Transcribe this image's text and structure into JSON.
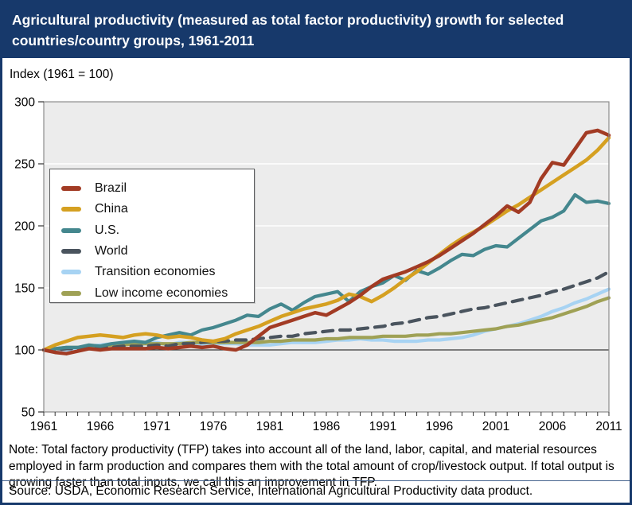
{
  "header": {
    "title": "Agricultural productivity (measured as total factor productivity) growth for selected countries/country groups, 1961-2011"
  },
  "axis_note": "Index (1961 = 100)",
  "note": {
    "lines": [
      "Note: Total factory productivity (TFP) takes into account all of the land, labor, capital, and material resources",
      "employed in farm production and compares them with the total amount of crop/livestock output. If total output is",
      "growing faster than total inputs, we call this an improvement in TFP."
    ]
  },
  "source": "Source: USDA, Economic Research Service, International Agricultural Productivity data product.",
  "colors": {
    "header_bg": "#17396b",
    "page_border": "#17396b",
    "plot_bg": "#ececec",
    "gridline": "#ffffff",
    "plot_border": "#8c8c8c",
    "baseline": "#3a3a3a",
    "tick": "#333333",
    "title_text": "#ffffff"
  },
  "chart_data": {
    "type": "line",
    "title": "Agricultural productivity (measured as total factor productivity) growth for selected countries/country groups, 1961-2011",
    "xlabel": "",
    "ylabel": "Index (1961 = 100)",
    "x_start": 1961,
    "x_end": 2011,
    "x_ticks": [
      1961,
      1966,
      1971,
      1976,
      1981,
      1986,
      1991,
      1996,
      2001,
      2006,
      2011
    ],
    "ylim": [
      50,
      300
    ],
    "y_ticks": [
      50,
      100,
      150,
      200,
      250,
      300
    ],
    "gridlines_y": [
      150,
      200,
      250
    ],
    "baseline_y": 100,
    "grid": "horizontal-only",
    "legend_position": "top-left",
    "series": [
      {
        "name": "Transition economies",
        "color": "#a7d3f3",
        "style": "solid",
        "width": 4.2,
        "values": [
          100,
          98,
          98,
          102,
          103,
          104,
          105,
          105,
          104,
          105,
          106,
          104,
          106,
          106,
          104,
          105,
          105,
          105,
          104,
          104,
          104,
          105,
          106,
          106,
          106,
          107,
          108,
          108,
          109,
          108,
          108,
          107,
          107,
          107,
          108,
          108,
          109,
          110,
          112,
          115,
          117,
          119,
          121,
          124,
          127,
          131,
          134,
          138,
          141,
          145,
          149
        ]
      },
      {
        "name": "Low income economies",
        "color": "#9fa155",
        "style": "solid",
        "width": 4.2,
        "values": [
          100,
          101,
          102,
          102,
          103,
          103,
          104,
          104,
          105,
          105,
          105,
          105,
          105,
          106,
          106,
          106,
          106,
          106,
          106,
          106,
          107,
          107,
          108,
          108,
          108,
          109,
          109,
          110,
          110,
          110,
          111,
          111,
          111,
          112,
          112,
          113,
          113,
          114,
          115,
          116,
          117,
          119,
          120,
          122,
          124,
          126,
          129,
          132,
          135,
          139,
          142
        ]
      },
      {
        "name": "World",
        "color": "#4a545e",
        "style": "dashed",
        "dash": "13 9",
        "width": 4.2,
        "values": [
          100,
          100,
          101,
          101,
          101,
          102,
          102,
          103,
          103,
          103,
          104,
          103,
          105,
          105,
          106,
          107,
          107,
          108,
          108,
          109,
          110,
          111,
          111,
          113,
          114,
          115,
          116,
          116,
          117,
          118,
          119,
          121,
          122,
          124,
          126,
          127,
          129,
          131,
          133,
          134,
          136,
          138,
          140,
          142,
          144,
          147,
          149,
          152,
          155,
          158,
          163
        ]
      },
      {
        "name": "U.S.",
        "color": "#44878e",
        "style": "solid",
        "width": 4.2,
        "values": [
          100,
          101,
          102,
          102,
          104,
          103,
          105,
          106,
          107,
          106,
          110,
          112,
          114,
          112,
          116,
          118,
          121,
          124,
          128,
          127,
          133,
          137,
          132,
          138,
          143,
          145,
          147,
          139,
          147,
          151,
          154,
          160,
          156,
          164,
          161,
          166,
          172,
          177,
          176,
          181,
          184,
          183,
          190,
          197,
          204,
          207,
          212,
          225,
          219,
          220,
          218
        ]
      },
      {
        "name": "China",
        "color": "#d5a021",
        "style": "solid",
        "width": 4.5,
        "values": [
          100,
          104,
          107,
          110,
          111,
          112,
          111,
          110,
          112,
          113,
          112,
          110,
          111,
          110,
          108,
          107,
          109,
          113,
          116,
          119,
          123,
          127,
          130,
          133,
          135,
          137,
          140,
          145,
          143,
          139,
          144,
          150,
          157,
          163,
          170,
          177,
          184,
          190,
          195,
          200,
          206,
          212,
          217,
          223,
          229,
          235,
          241,
          247,
          253,
          261,
          271
        ]
      },
      {
        "name": "Brazil",
        "color": "#a23b24",
        "style": "solid",
        "width": 4.5,
        "values": [
          100,
          98,
          97,
          99,
          101,
          100,
          101,
          101,
          101,
          101,
          102,
          101,
          102,
          103,
          102,
          103,
          101,
          100,
          104,
          111,
          118,
          121,
          124,
          127,
          130,
          128,
          133,
          138,
          144,
          151,
          157,
          160,
          163,
          167,
          171,
          176,
          182,
          188,
          194,
          201,
          208,
          216,
          211,
          219,
          238,
          251,
          249,
          262,
          275,
          277,
          273
        ]
      }
    ],
    "legend_order": [
      "Brazil",
      "China",
      "U.S.",
      "World",
      "Transition economies",
      "Low income economies"
    ]
  }
}
